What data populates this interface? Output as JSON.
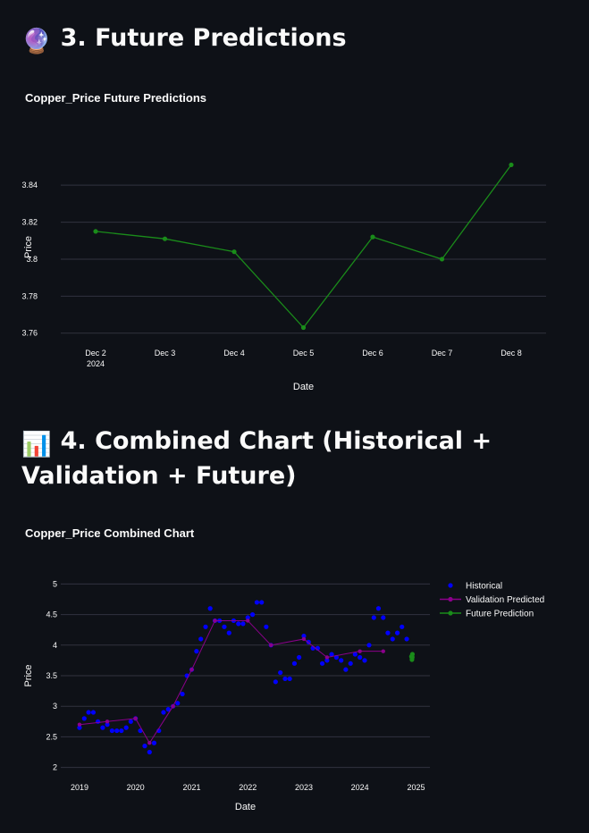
{
  "section3": {
    "emoji": "🔮",
    "title": "3. Future Predictions"
  },
  "section4": {
    "emoji": "📊",
    "title": "4. Combined Chart (Historical + Validation + Future)"
  },
  "colors": {
    "background": "#0e1117",
    "future": "#1a8c1a",
    "historical": "#0000ff",
    "validation": "#8b008b",
    "grid": "#31333f"
  },
  "chart_data": [
    {
      "type": "line",
      "title": "Copper_Price Future Predictions",
      "xlabel": "Date",
      "ylabel": "Price",
      "x": [
        "2024-12-02",
        "2024-12-03",
        "2024-12-04",
        "2024-12-05",
        "2024-12-06",
        "2024-12-07",
        "2024-12-08"
      ],
      "x_tick_labels": [
        "Dec 2\n2024",
        "Dec 3",
        "Dec 4",
        "Dec 5",
        "Dec 6",
        "Dec 7",
        "Dec 8"
      ],
      "y_ticks": [
        "3.76",
        "3.78",
        "3.8",
        "3.82",
        "3.84"
      ],
      "series": [
        {
          "values": [
            3.815,
            3.811,
            3.804,
            3.763,
            3.812,
            3.8,
            3.851
          ]
        }
      ],
      "ylim": [
        3.756,
        3.857
      ],
      "grid": true
    },
    {
      "type": "line",
      "title": "Copper_Price Combined Chart",
      "xlabel": "Date",
      "ylabel": "Price",
      "x_tick_labels": [
        "2019",
        "2020",
        "2021",
        "2022",
        "2023",
        "2024",
        "2025"
      ],
      "y_ticks": [
        "2",
        "2.5",
        "3",
        "3.5",
        "4",
        "4.5",
        "5"
      ],
      "xlim": [
        "2018-09-01",
        "2025-04-01"
      ],
      "ylim": [
        1.95,
        5.05
      ],
      "legend": "top-right",
      "grid": true,
      "series": [
        {
          "name": "Historical",
          "mode": "markers",
          "x": [
            "2019-01-01",
            "2019-02-01",
            "2019-03-01",
            "2019-04-01",
            "2019-05-01",
            "2019-06-01",
            "2019-07-01",
            "2019-08-01",
            "2019-09-01",
            "2019-10-01",
            "2019-11-01",
            "2019-12-01",
            "2020-01-01",
            "2020-02-01",
            "2020-03-01",
            "2020-04-01",
            "2020-05-01",
            "2020-06-01",
            "2020-07-01",
            "2020-08-01",
            "2020-09-01",
            "2020-10-01",
            "2020-11-01",
            "2020-12-01",
            "2021-01-01",
            "2021-02-01",
            "2021-03-01",
            "2021-04-01",
            "2021-05-01",
            "2021-06-01",
            "2021-07-01",
            "2021-08-01",
            "2021-09-01",
            "2021-10-01",
            "2021-11-01",
            "2021-12-01",
            "2022-01-01",
            "2022-02-01",
            "2022-03-01",
            "2022-04-01",
            "2022-05-01",
            "2022-06-01",
            "2022-07-01",
            "2022-08-01",
            "2022-09-01",
            "2022-10-01",
            "2022-11-01",
            "2022-12-01",
            "2023-01-01",
            "2023-02-01",
            "2023-03-01",
            "2023-04-01",
            "2023-05-01",
            "2023-06-01",
            "2023-07-01",
            "2023-08-01",
            "2023-09-01",
            "2023-10-01",
            "2023-11-01",
            "2023-12-01",
            "2024-01-01",
            "2024-02-01",
            "2024-03-01",
            "2024-04-01",
            "2024-05-01",
            "2024-06-01",
            "2024-07-01",
            "2024-08-01",
            "2024-09-01",
            "2024-10-01",
            "2024-11-01"
          ],
          "values": [
            2.65,
            2.8,
            2.9,
            2.9,
            2.75,
            2.65,
            2.7,
            2.6,
            2.6,
            2.6,
            2.65,
            2.75,
            2.8,
            2.6,
            2.35,
            2.25,
            2.4,
            2.6,
            2.9,
            2.95,
            3.0,
            3.05,
            3.2,
            3.5,
            3.6,
            3.9,
            4.1,
            4.3,
            4.6,
            4.4,
            4.4,
            4.3,
            4.2,
            4.4,
            4.35,
            4.35,
            4.45,
            4.5,
            4.7,
            4.7,
            4.3,
            4.0,
            3.4,
            3.55,
            3.45,
            3.45,
            3.7,
            3.8,
            4.15,
            4.05,
            3.95,
            3.95,
            3.7,
            3.75,
            3.85,
            3.8,
            3.75,
            3.6,
            3.7,
            3.85,
            3.8,
            3.75,
            4.0,
            4.45,
            4.6,
            4.45,
            4.2,
            4.1,
            4.2,
            4.3,
            4.1
          ]
        },
        {
          "name": "Validation Predicted",
          "mode": "lines+markers",
          "x": [
            "2019-01-01",
            "2019-07-01",
            "2020-01-01",
            "2020-04-01",
            "2020-09-01",
            "2021-01-01",
            "2021-06-01",
            "2022-01-01",
            "2022-06-01",
            "2023-01-01",
            "2023-06-01",
            "2024-01-01",
            "2024-06-01"
          ],
          "values": [
            2.7,
            2.75,
            2.8,
            2.4,
            3.0,
            3.6,
            4.4,
            4.4,
            4.0,
            4.1,
            3.8,
            3.9,
            3.9
          ]
        },
        {
          "name": "Future Prediction",
          "mode": "lines+markers",
          "x": [
            "2024-12-02",
            "2024-12-03",
            "2024-12-04",
            "2024-12-05",
            "2024-12-06",
            "2024-12-07",
            "2024-12-08"
          ],
          "values": [
            3.815,
            3.811,
            3.804,
            3.763,
            3.812,
            3.8,
            3.851
          ]
        }
      ]
    }
  ]
}
